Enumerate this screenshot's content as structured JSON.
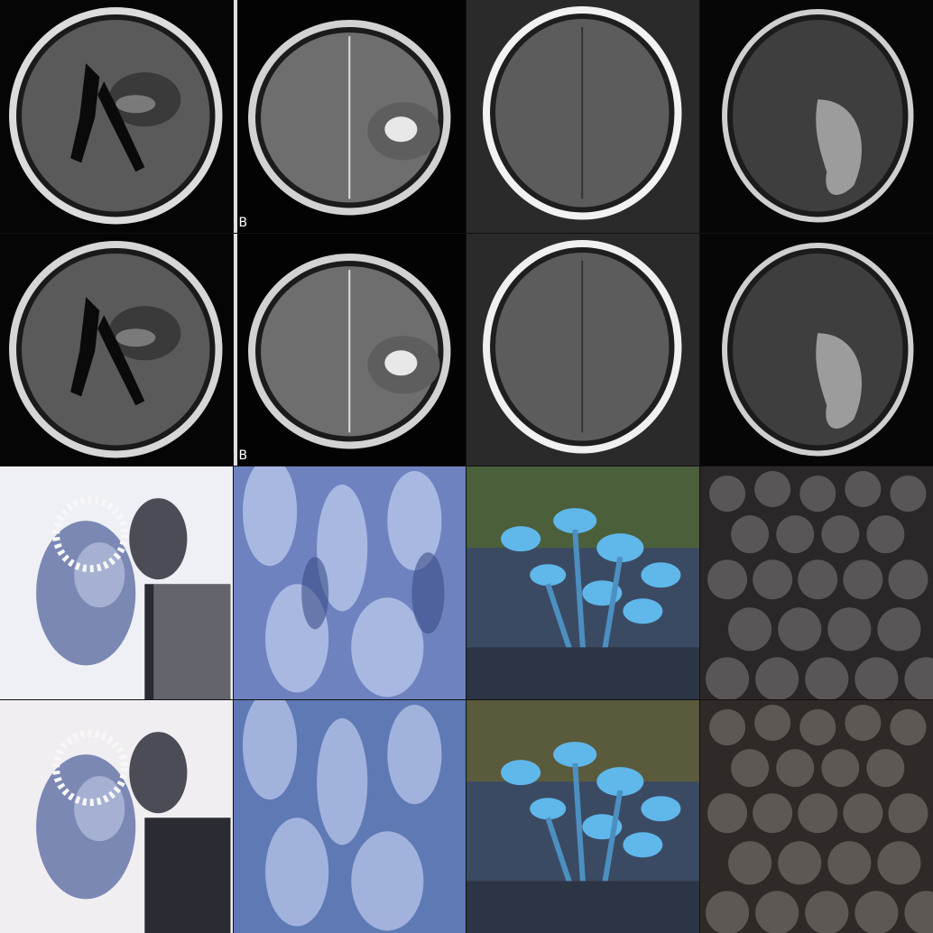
{
  "panel_letter_row1": "B",
  "panel_letter_row2": "B",
  "colors": {
    "mri_dark": "#0b0b0b",
    "mri_skull": "#e8e8e8",
    "mri_brain": "#6d6d6d",
    "mri_lesion": "#cfcfcf",
    "couple_bg": "#eef0f6",
    "dolls_blue": "#7d90c8",
    "mushroom_blue": "#5fb7ea",
    "blueberry_dark": "#3e3a3c"
  }
}
